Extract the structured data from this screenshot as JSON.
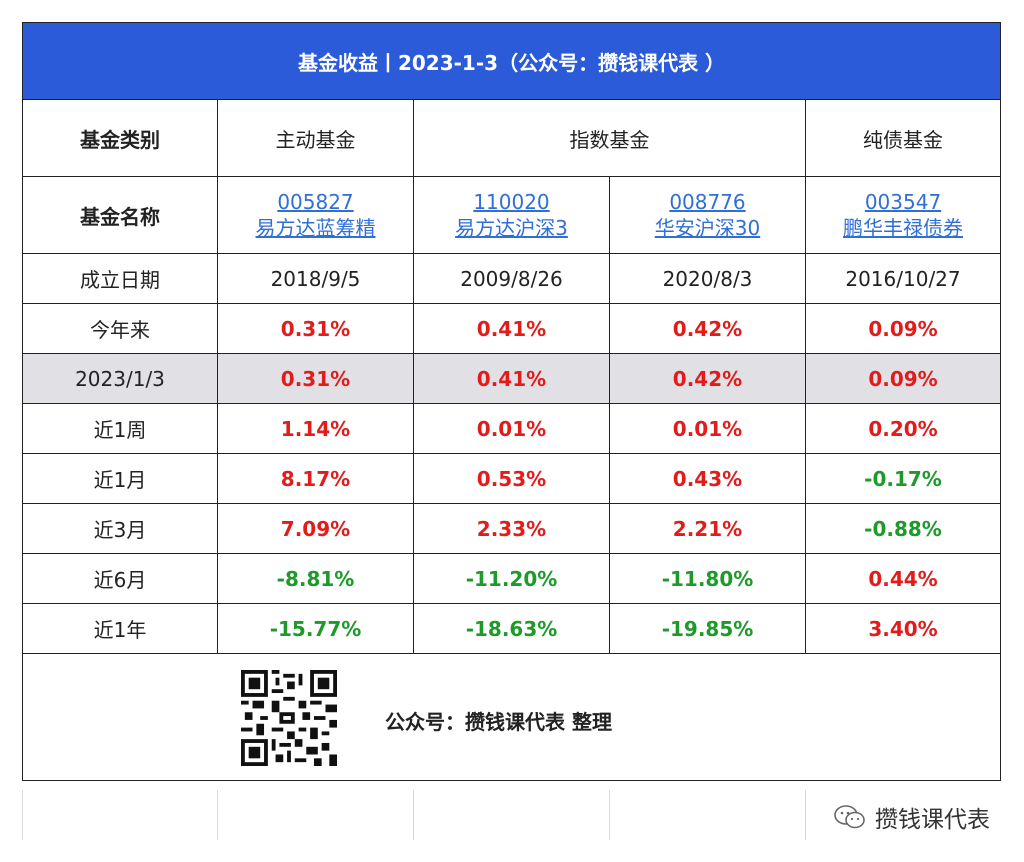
{
  "title": "基金收益丨2023-1-3（公众号：攒钱课代表 ）",
  "header": {
    "category_label": "基金类别",
    "groups": [
      "主动基金",
      "指数基金",
      "纯债基金"
    ]
  },
  "name_row": {
    "label": "基金名称",
    "funds": [
      {
        "code": "005827",
        "name": "易方达蓝筹精"
      },
      {
        "code": "110020",
        "name": "易方达沪深3"
      },
      {
        "code": "008776",
        "name": "华安沪深30"
      },
      {
        "code": "003547",
        "name": "鹏华丰禄债券"
      }
    ]
  },
  "rows": [
    {
      "label": "成立日期",
      "values": [
        "2018/9/5",
        "2009/8/26",
        "2020/8/3",
        "2016/10/27"
      ],
      "kind": [
        "plain",
        "plain",
        "plain",
        "plain"
      ],
      "highlight": false
    },
    {
      "label": "今年来",
      "values": [
        "0.31%",
        "0.41%",
        "0.42%",
        "0.09%"
      ],
      "kind": [
        "pos",
        "pos",
        "pos",
        "pos"
      ],
      "highlight": false
    },
    {
      "label": "2023/1/3",
      "values": [
        "0.31%",
        "0.41%",
        "0.42%",
        "0.09%"
      ],
      "kind": [
        "pos",
        "pos",
        "pos",
        "pos"
      ],
      "highlight": true
    },
    {
      "label": "近1周",
      "values": [
        "1.14%",
        "0.01%",
        "0.01%",
        "0.20%"
      ],
      "kind": [
        "pos",
        "pos",
        "pos",
        "pos"
      ],
      "highlight": false
    },
    {
      "label": "近1月",
      "values": [
        "8.17%",
        "0.53%",
        "0.43%",
        "-0.17%"
      ],
      "kind": [
        "pos",
        "pos",
        "pos",
        "neg"
      ],
      "highlight": false
    },
    {
      "label": "近3月",
      "values": [
        "7.09%",
        "2.33%",
        "2.21%",
        "-0.88%"
      ],
      "kind": [
        "pos",
        "pos",
        "pos",
        "neg"
      ],
      "highlight": false
    },
    {
      "label": "近6月",
      "values": [
        "-8.81%",
        "-11.20%",
        "-11.80%",
        "0.44%"
      ],
      "kind": [
        "neg",
        "neg",
        "neg",
        "pos"
      ],
      "highlight": false
    },
    {
      "label": "近1年",
      "values": [
        "-15.77%",
        "-18.63%",
        "-19.85%",
        "3.40%"
      ],
      "kind": [
        "neg",
        "neg",
        "neg",
        "pos"
      ],
      "highlight": false
    }
  ],
  "footer": {
    "text": "公众号：攒钱课代表 整理",
    "qr_icon": "qr-code-icon"
  },
  "wechat_badge": {
    "text": "攒钱课代表",
    "icon": "wechat-icon"
  },
  "colors": {
    "title_bg": "#2b5bd9",
    "positive": "#e21b1b",
    "negative": "#1d9a2a",
    "link": "#2f6fd6",
    "highlight_row": "#e1e1e5"
  }
}
